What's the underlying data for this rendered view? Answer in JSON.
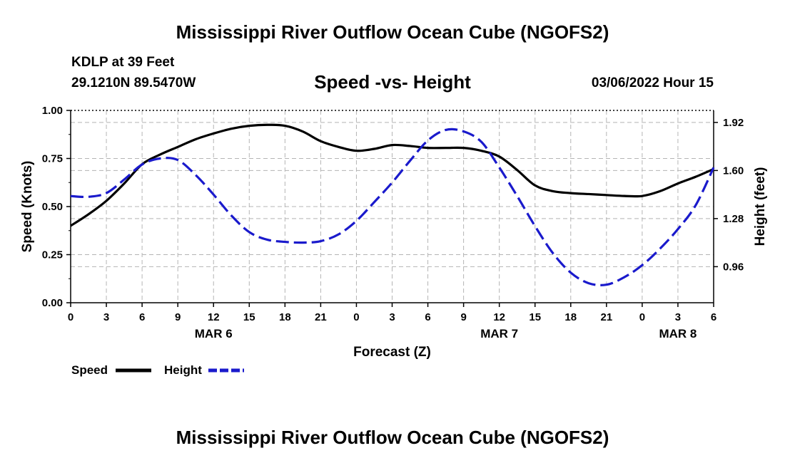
{
  "title": "Mississippi River Outflow Ocean Cube (NGOFS2)",
  "title_repeat": "Mississippi River Outflow Ocean Cube (NGOFS2)",
  "station": "KDLP at 39 Feet",
  "coords": "29.1210N  89.5470W",
  "datetime": "03/06/2022 Hour 15",
  "colors": {
    "speed": "#000000",
    "height": "#1a1acc",
    "grid": "#b4b4b4"
  },
  "legend": {
    "speed": "Speed",
    "height": "Height"
  },
  "chart_data": {
    "type": "line",
    "title": "Speed -vs- Height",
    "xlabel": "Forecast (Z)",
    "ylabel": "Speed (Knots)",
    "ylabel_right": "Height (feet)",
    "xlim": [
      0,
      54
    ],
    "ylim": [
      0,
      1.0
    ],
    "ylim_right": [
      0.72,
      2.0
    ],
    "x_ticks": [
      0,
      3,
      6,
      9,
      12,
      15,
      18,
      21,
      24,
      27,
      30,
      33,
      36,
      39,
      42,
      45,
      48,
      51,
      54
    ],
    "x_tick_labels": [
      "0",
      "3",
      "6",
      "9",
      "12",
      "15",
      "18",
      "21",
      "0",
      "3",
      "6",
      "9",
      "12",
      "15",
      "18",
      "21",
      "0",
      "3",
      "6"
    ],
    "date_labels": [
      {
        "x": 12,
        "label": "MAR 6"
      },
      {
        "x": 36,
        "label": "MAR 7"
      },
      {
        "x": 51,
        "label": "MAR 8"
      }
    ],
    "y_ticks": [
      0,
      0.25,
      0.5,
      0.75,
      1.0
    ],
    "y_tick_labels": [
      "0.00",
      "0.25",
      "0.50",
      "0.75",
      "1.00"
    ],
    "y_right_ticks": [
      0.96,
      1.28,
      1.6,
      1.92
    ],
    "y_right_tick_labels": [
      "0.96",
      "1.28",
      "1.60",
      "1.92"
    ],
    "series": [
      {
        "name": "Speed",
        "axis": "left",
        "style": "solid",
        "x": [
          0,
          1.5,
          3,
          4.5,
          6,
          7.5,
          9,
          10.5,
          12,
          13.5,
          15,
          16.5,
          18,
          19.5,
          21,
          22.5,
          24,
          25.5,
          27,
          28.5,
          30,
          31.5,
          33,
          34.5,
          36,
          37.5,
          39,
          40.5,
          42,
          43.5,
          45,
          46.5,
          48,
          49.5,
          51,
          52.5,
          54
        ],
        "values": [
          0.4,
          0.46,
          0.53,
          0.62,
          0.72,
          0.77,
          0.81,
          0.85,
          0.88,
          0.905,
          0.92,
          0.925,
          0.92,
          0.89,
          0.84,
          0.81,
          0.79,
          0.8,
          0.82,
          0.815,
          0.805,
          0.805,
          0.805,
          0.79,
          0.76,
          0.69,
          0.61,
          0.58,
          0.57,
          0.565,
          0.56,
          0.555,
          0.555,
          0.58,
          0.62,
          0.655,
          0.695
        ]
      },
      {
        "name": "Height",
        "axis": "right",
        "style": "dashed",
        "x": [
          0,
          1.5,
          3,
          4.5,
          6,
          7.5,
          9,
          10.5,
          12,
          13.5,
          15,
          16.5,
          18,
          19.5,
          21,
          22.5,
          24,
          25.5,
          27,
          28.5,
          30,
          31.5,
          33,
          34.5,
          36,
          37.5,
          39,
          40.5,
          42,
          43.5,
          45,
          46.5,
          48,
          49.5,
          51,
          52.5,
          54
        ],
        "values": [
          1.43,
          1.425,
          1.45,
          1.54,
          1.64,
          1.68,
          1.67,
          1.57,
          1.44,
          1.3,
          1.19,
          1.14,
          1.125,
          1.12,
          1.13,
          1.175,
          1.265,
          1.39,
          1.52,
          1.665,
          1.8,
          1.87,
          1.86,
          1.79,
          1.62,
          1.43,
          1.23,
          1.05,
          0.92,
          0.85,
          0.84,
          0.89,
          0.97,
          1.08,
          1.21,
          1.37,
          1.62
        ]
      }
    ]
  }
}
